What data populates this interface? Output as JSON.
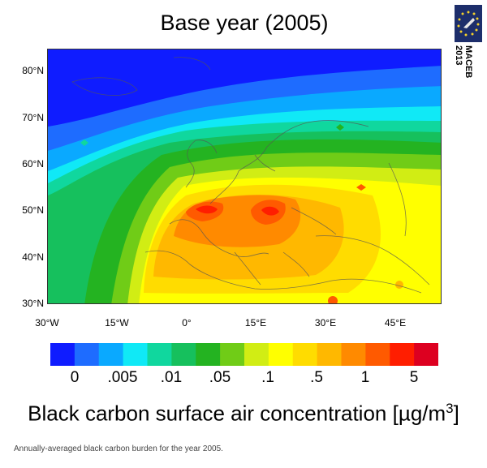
{
  "title": "Base year (2005)",
  "badge": {
    "name": "MACEB",
    "year": "2013"
  },
  "map": {
    "lat_labels": [
      "80°N",
      "70°N",
      "60°N",
      "50°N",
      "40°N",
      "30°N"
    ],
    "lon_labels": [
      "30°W",
      "15°W",
      "0°",
      "15°E",
      "30°E",
      "45°E"
    ],
    "extent": {
      "lon": [
        -30,
        55
      ],
      "lat": [
        30,
        85
      ]
    }
  },
  "colorbar": {
    "colors": [
      "#0f1cff",
      "#1e6cff",
      "#0aa9ff",
      "#10e9f6",
      "#10d79e",
      "#16c05d",
      "#24b321",
      "#70cc17",
      "#d1ed14",
      "#ffff00",
      "#ffdc00",
      "#ffb800",
      "#ff8a00",
      "#ff5a00",
      "#ff1e00",
      "#dd0020"
    ],
    "tick_labels": [
      "0",
      ".005",
      ".01",
      ".05",
      ".1",
      ".5",
      "1",
      "5"
    ],
    "label": "Black carbon surface air concentration [µg/m³]",
    "label_main": "Black carbon surface air concentration [",
    "label_mu": "µ",
    "label_unit": "g/m",
    "label_sup": "3",
    "label_end": "]"
  },
  "caption": "Annually-averaged black carbon burden for the year 2005."
}
